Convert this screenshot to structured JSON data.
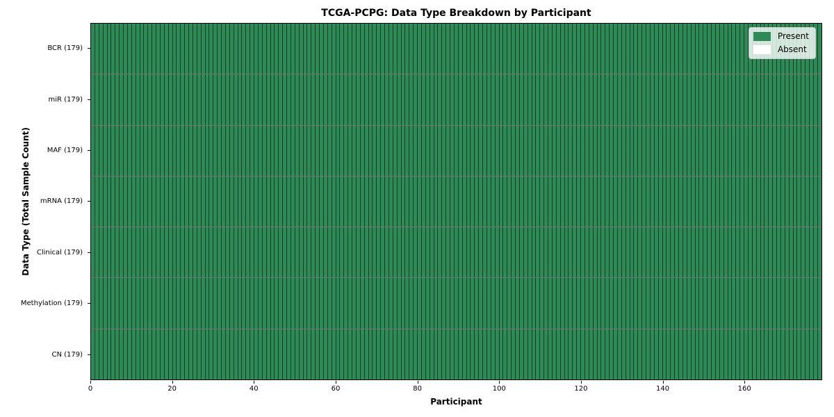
{
  "chart_data": {
    "type": "heatmap",
    "title": "TCGA-PCPG: Data Type Breakdown by Participant",
    "xlabel": "Participant",
    "ylabel": "Data Type (Total Sample Count)",
    "participants": 179,
    "xlim": [
      0,
      179
    ],
    "x_ticks": [
      0,
      20,
      40,
      60,
      80,
      100,
      120,
      140,
      160
    ],
    "rows": [
      {
        "label": "BCR (179)",
        "name": "BCR",
        "total_samples": 179,
        "present": 179,
        "absent": 0
      },
      {
        "label": "miR (179)",
        "name": "miR",
        "total_samples": 179,
        "present": 179,
        "absent": 0
      },
      {
        "label": "MAF (179)",
        "name": "MAF",
        "total_samples": 179,
        "present": 179,
        "absent": 0
      },
      {
        "label": "mRNA (179)",
        "name": "mRNA",
        "total_samples": 179,
        "present": 179,
        "absent": 0
      },
      {
        "label": "Clinical (179)",
        "name": "Clinical",
        "total_samples": 179,
        "present": 179,
        "absent": 0
      },
      {
        "label": "Methylation (179)",
        "name": "Methylation",
        "total_samples": 179,
        "present": 179,
        "absent": 0
      },
      {
        "label": "CN (179)",
        "name": "CN",
        "total_samples": 179,
        "present": 179,
        "absent": 0
      }
    ],
    "legend": {
      "position": "upper right",
      "items": [
        {
          "label": "Present",
          "color": "#2e8b57"
        },
        {
          "label": "Absent",
          "color": "#ffffff"
        }
      ]
    },
    "colors": {
      "present": "#2e8b57",
      "absent": "#ffffff",
      "cell_border": "rgba(0,0,0,0.55)",
      "axis": "#000000",
      "legend_background": "rgba(255,255,255,0.8)",
      "legend_border": "#c9c9c9"
    },
    "grid": "per-cell borders",
    "legend_visible": true
  }
}
